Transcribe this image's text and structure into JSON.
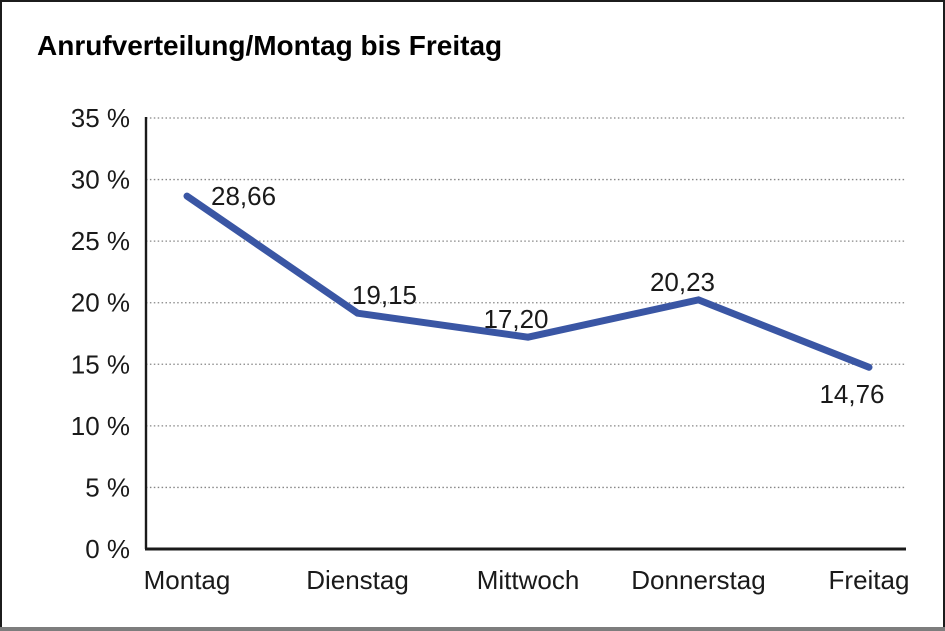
{
  "window": {
    "title": "Anrufverteilung/Montag bis Freitag"
  },
  "chart_data": {
    "type": "line",
    "title": "Anrufverteilung/Montag bis Freitag",
    "categories": [
      "Montag",
      "Dienstag",
      "Mittwoch",
      "Donnerstag",
      "Freitag"
    ],
    "series": [
      {
        "name": "Anrufverteilung",
        "values": [
          28.66,
          19.15,
          17.2,
          20.23,
          14.76
        ],
        "value_labels": [
          "28,66",
          "19,15",
          "17,20",
          "20,23",
          "14,76"
        ]
      }
    ],
    "ylim": [
      0,
      35
    ],
    "y_tick_step": 5,
    "y_tick_suffix": " %",
    "y_tick_labels": [
      "0 %",
      "5 %",
      "10 %",
      "15 %",
      "20 %",
      "25 %",
      "30 %",
      "35 %"
    ],
    "grid": "horizontal-dotted",
    "legend": "none"
  },
  "colors": {
    "line": "#3A56A4",
    "text": "#1a1a1a",
    "grid": "#858585",
    "axis": "#1a1a1a",
    "frame_border": "#1c1c1c",
    "frame_bottom_bar": "#7d7d7d",
    "background": "#ffffff"
  }
}
